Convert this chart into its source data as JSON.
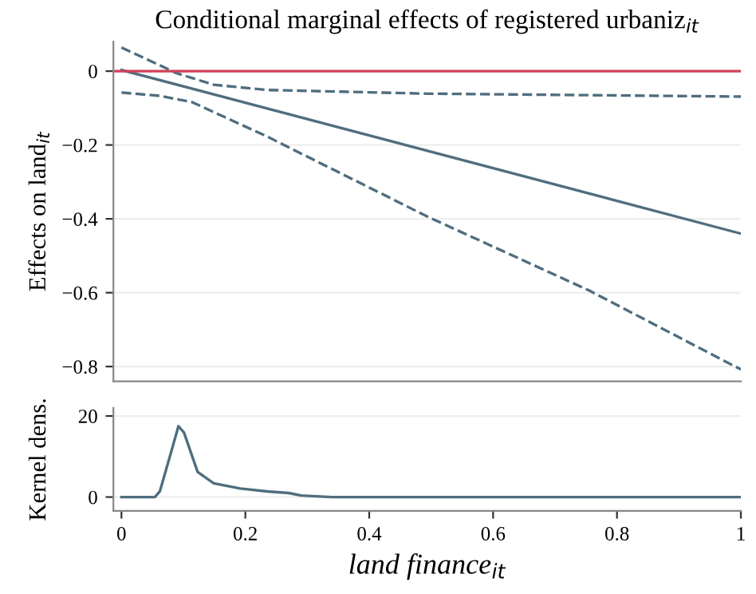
{
  "chart_data": [
    {
      "type": "line",
      "title": "Conditional marginal effects of registered urbaniz$_{it}$",
      "ylabel": "Effects on land$_{it}$",
      "xlim": [
        -0.013,
        1.0
      ],
      "xticks": [
        0,
        0.2,
        0.4,
        0.6,
        0.8,
        1
      ],
      "ylim": [
        -0.84,
        0.08
      ],
      "yticks": [
        -0.8,
        -0.6,
        -0.4,
        -0.2,
        0
      ],
      "tick_labels": "y",
      "grid": "y",
      "series": [
        {
          "color": "#4f6e7e",
          "line_style": "solid",
          "x": [
            0,
            1
          ],
          "values": [
            0.003,
            -0.44
          ]
        },
        {
          "color": "#4f6e7e",
          "line_style": "dashed",
          "x": [
            0,
            0.045,
            0.088,
            0.149,
            0.235,
            0.494,
            1.0
          ],
          "values": [
            0.064,
            0.029,
            -0.005,
            -0.037,
            -0.051,
            -0.061,
            -0.069
          ]
        },
        {
          "color": "#4f6e7e",
          "line_style": "dashed",
          "x": [
            0,
            0.062,
            0.114,
            0.235,
            0.494,
            0.755,
            1.0
          ],
          "values": [
            -0.058,
            -0.067,
            -0.084,
            -0.177,
            -0.394,
            -0.594,
            -0.808
          ]
        }
      ],
      "ref_lines": [
        {
          "axis": "y",
          "value": 0,
          "color": "#d0405a"
        }
      ]
    },
    {
      "type": "line",
      "ylabel": "Kernel dens.",
      "xlabel": "land finance$_{it}$",
      "xlim": [
        -0.013,
        1.0
      ],
      "ylim": [
        -3.4,
        22
      ],
      "yticks": [
        0,
        20
      ],
      "xticks": [
        0,
        0.2,
        0.4,
        0.6,
        0.8,
        1
      ],
      "grid": "y",
      "series": [
        {
          "color": "#4f6e7e",
          "line_style": "solid",
          "x": [
            0,
            0.054,
            0.062,
            0.08,
            0.092,
            0.101,
            0.123,
            0.149,
            0.192,
            0.235,
            0.27,
            0.29,
            0.34,
            1.0
          ],
          "values": [
            0,
            0,
            1.4,
            11,
            17.5,
            15.9,
            6.2,
            3.4,
            2.1,
            1.4,
            1,
            0.4,
            0,
            0
          ]
        }
      ]
    }
  ]
}
